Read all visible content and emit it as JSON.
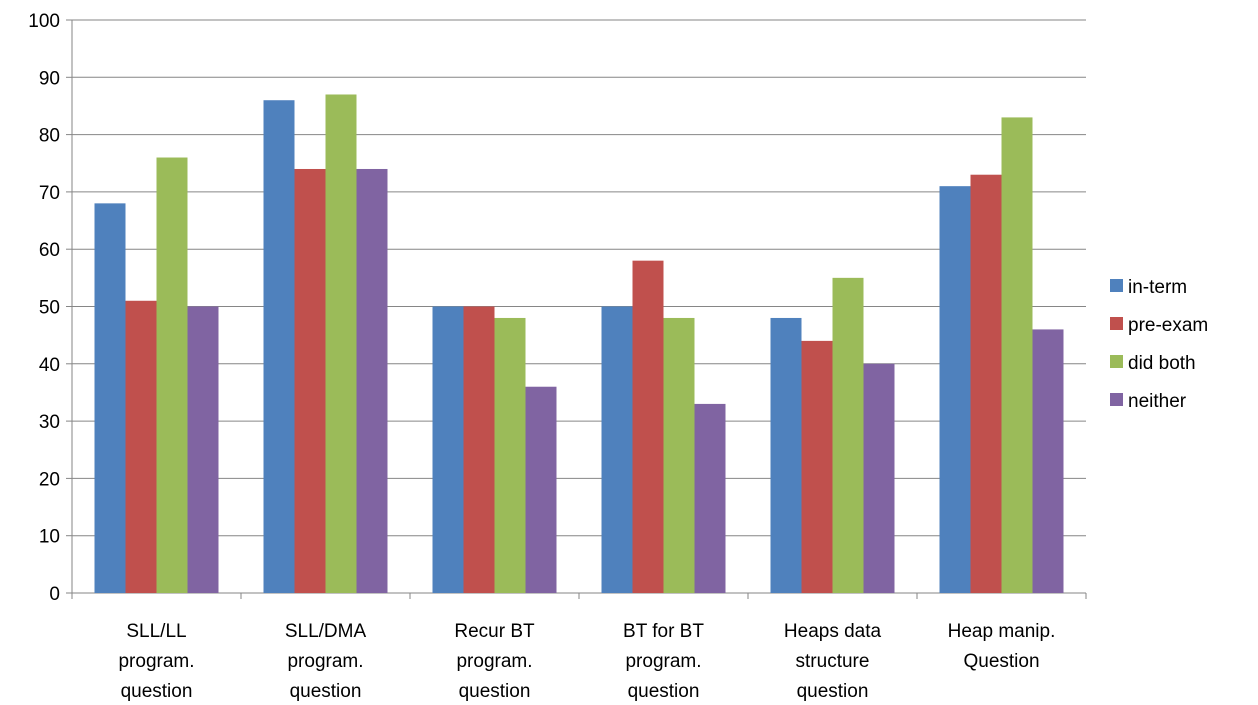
{
  "chart_data": {
    "type": "bar",
    "title": "",
    "xlabel": "",
    "ylabel": "",
    "ylim": [
      0,
      100
    ],
    "ytick_step": 10,
    "yticks": [
      "0",
      "10",
      "20",
      "30",
      "40",
      "50",
      "60",
      "70",
      "80",
      "90",
      "100"
    ],
    "grid": true,
    "legend_position": "right",
    "categories": [
      [
        "SLL/LL",
        "program.",
        "question"
      ],
      [
        "SLL/DMA",
        "program.",
        "question"
      ],
      [
        "Recur BT",
        "program.",
        "question"
      ],
      [
        "BT for BT",
        "program.",
        "question"
      ],
      [
        "Heaps data",
        "structure",
        "question"
      ],
      [
        "Heap manip.",
        "Question"
      ]
    ],
    "series": [
      {
        "name": "in-term",
        "color": "#4F81BD",
        "values": [
          68,
          86,
          50,
          50,
          48,
          71
        ]
      },
      {
        "name": "pre-exam",
        "color": "#C0504D",
        "values": [
          51,
          74,
          50,
          58,
          44,
          73
        ]
      },
      {
        "name": "did both",
        "color": "#9BBB59",
        "values": [
          76,
          87,
          48,
          48,
          55,
          83
        ]
      },
      {
        "name": "neither",
        "color": "#8064A2",
        "values": [
          50,
          74,
          36,
          33,
          40,
          46
        ]
      }
    ]
  }
}
